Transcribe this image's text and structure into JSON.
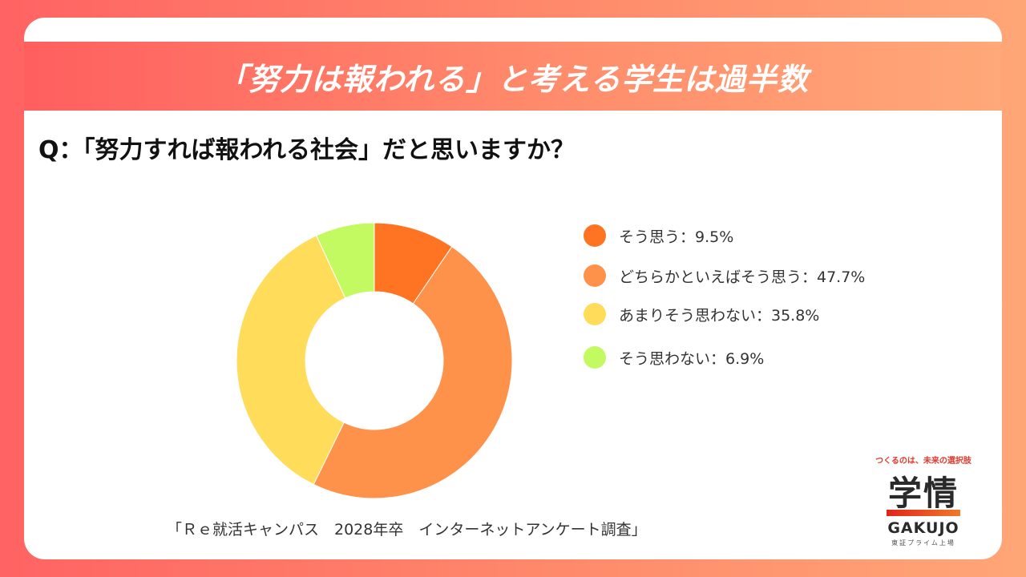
{
  "banner": {
    "title": "「努力は報われる」と考える学生は過半数"
  },
  "question": {
    "text": "Q：「努力すれば報われる社会」だと思いますか？"
  },
  "chart_data": {
    "type": "pie",
    "title": "「努力すれば報われる社会」だと思いますか？",
    "categories": [
      "そう思う",
      "どちらかといえばそう思う",
      "あまりそう思わない",
      "そう思わない"
    ],
    "values": [
      9.5,
      47.7,
      35.8,
      6.9
    ],
    "colors": [
      "#ff7422",
      "#ff924a",
      "#ffdc5a",
      "#c4fa61"
    ],
    "legend_labels": [
      "そう思う：9.5%",
      "どちらかといえばそう思う：47.7%",
      "あまりそう思わない：35.8%",
      "そう思わない：6.9%"
    ],
    "legend_position": "right",
    "donut": true
  },
  "footnote": {
    "text": "「Ｒｅ就活キャンパス　2028年卒　インターネットアンケート調査」"
  },
  "logo": {
    "tagline": "つくるのは、未来の選択肢",
    "kanji": "学情",
    "english": "GAKUJO",
    "listing": "東証プライム上場"
  }
}
